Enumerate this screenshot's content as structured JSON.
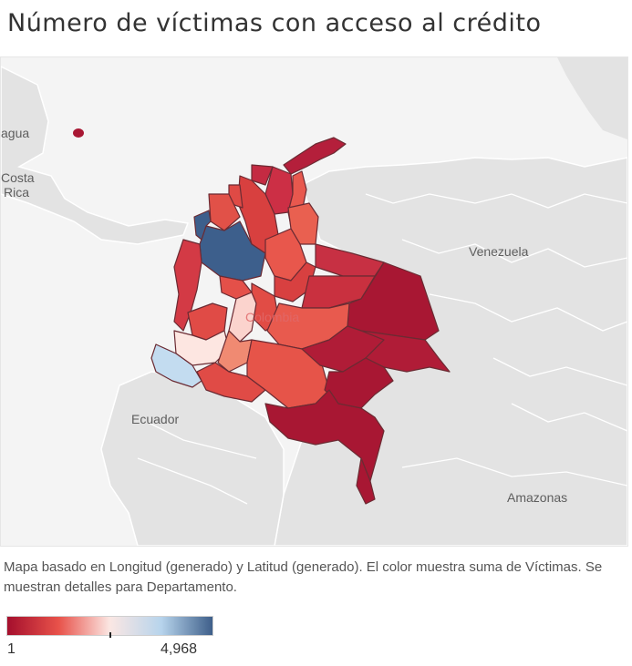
{
  "title": "Número de víctimas con acceso al crédito",
  "map_labels": {
    "nicaragua_fragment": "agua",
    "costa_rica_1": "Costa",
    "costa_rica_2": "Rica",
    "venezuela": "Venezuela",
    "colombia": "Colombia",
    "ecuador": "Ecuador",
    "amazonas": "Amazonas"
  },
  "note": "Mapa basado en Longitud (generado) y Latitud (generado).  El color muestra suma de Víctimas.  Se muestran detalles para Departamento.",
  "legend": {
    "min_label": "1",
    "max_label": "4,968",
    "colors": [
      "#a50f2d",
      "#e8524a",
      "#fbe7e3",
      "#b7d4ec",
      "#3e5f8a"
    ]
  },
  "colors": {
    "land": "#e3e3e3",
    "water": "#f4f4f4",
    "border": "#ffffff",
    "dept_border": "#6b2b33"
  }
}
